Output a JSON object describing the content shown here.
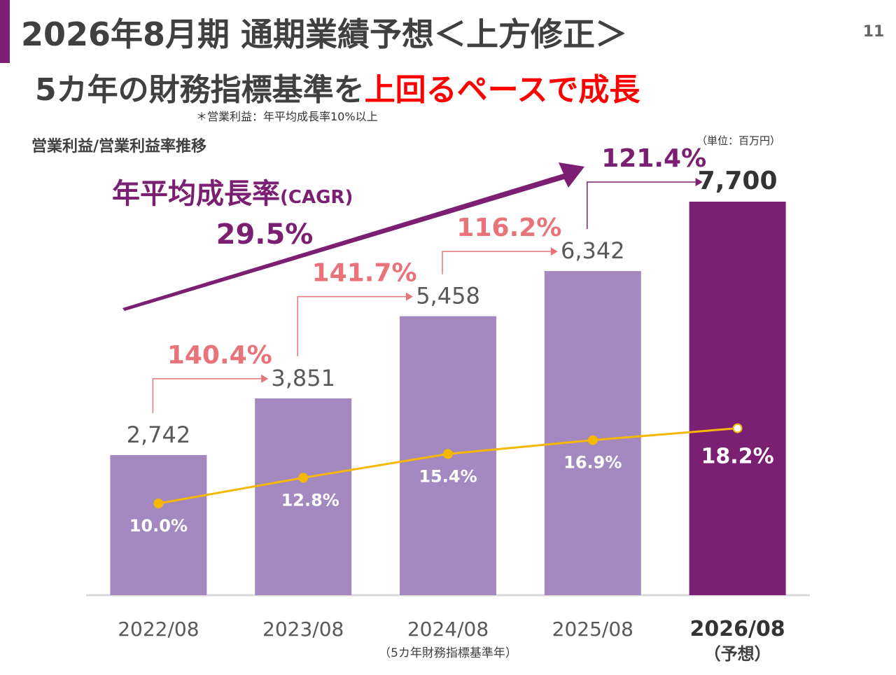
{
  "page_number": "11",
  "title": "2026年8月期 通期業績予想＜上方修正＞",
  "headline": {
    "text": "5カ年の財務指標基準を",
    "highlight": "上回るペースで成長"
  },
  "note": "＊営業利益：年平均成長率10%以上",
  "chart_data": {
    "type": "bar",
    "subtitle": "営業利益/営業利益率推移",
    "unit": "（単位：百万円）",
    "categories": [
      "2022/08",
      "2023/08",
      "2024/08",
      "2025/08",
      "2026/08"
    ],
    "category_notes": [
      null,
      null,
      "（5カ年財務指標基準年）",
      null,
      "（予想）"
    ],
    "series": [
      {
        "color": "#a389c0",
        "highlight_color": "#7b1f73",
        "values": [
          2742,
          3851,
          5458,
          6342,
          7700
        ],
        "value_labels": [
          "2,742",
          "3,851",
          "5,458",
          "6,342",
          "7,700"
        ]
      },
      {
        "type": "line",
        "color": "#f5b800",
        "values": [
          10.0,
          12.8,
          15.4,
          16.9,
          18.2
        ],
        "value_labels": [
          "10.0%",
          "12.8%",
          "15.4%",
          "16.9%",
          "18.2%"
        ]
      }
    ],
    "growth": {
      "values": [
        140.4,
        141.7,
        116.2,
        121.4
      ],
      "value_labels": [
        "140.4%",
        "141.7%",
        "116.2%",
        "121.4%"
      ]
    },
    "cagr": {
      "label": "年平均成長率",
      "suffix": "(CAGR)",
      "value": 29.5,
      "value_label": "29.5%"
    }
  }
}
